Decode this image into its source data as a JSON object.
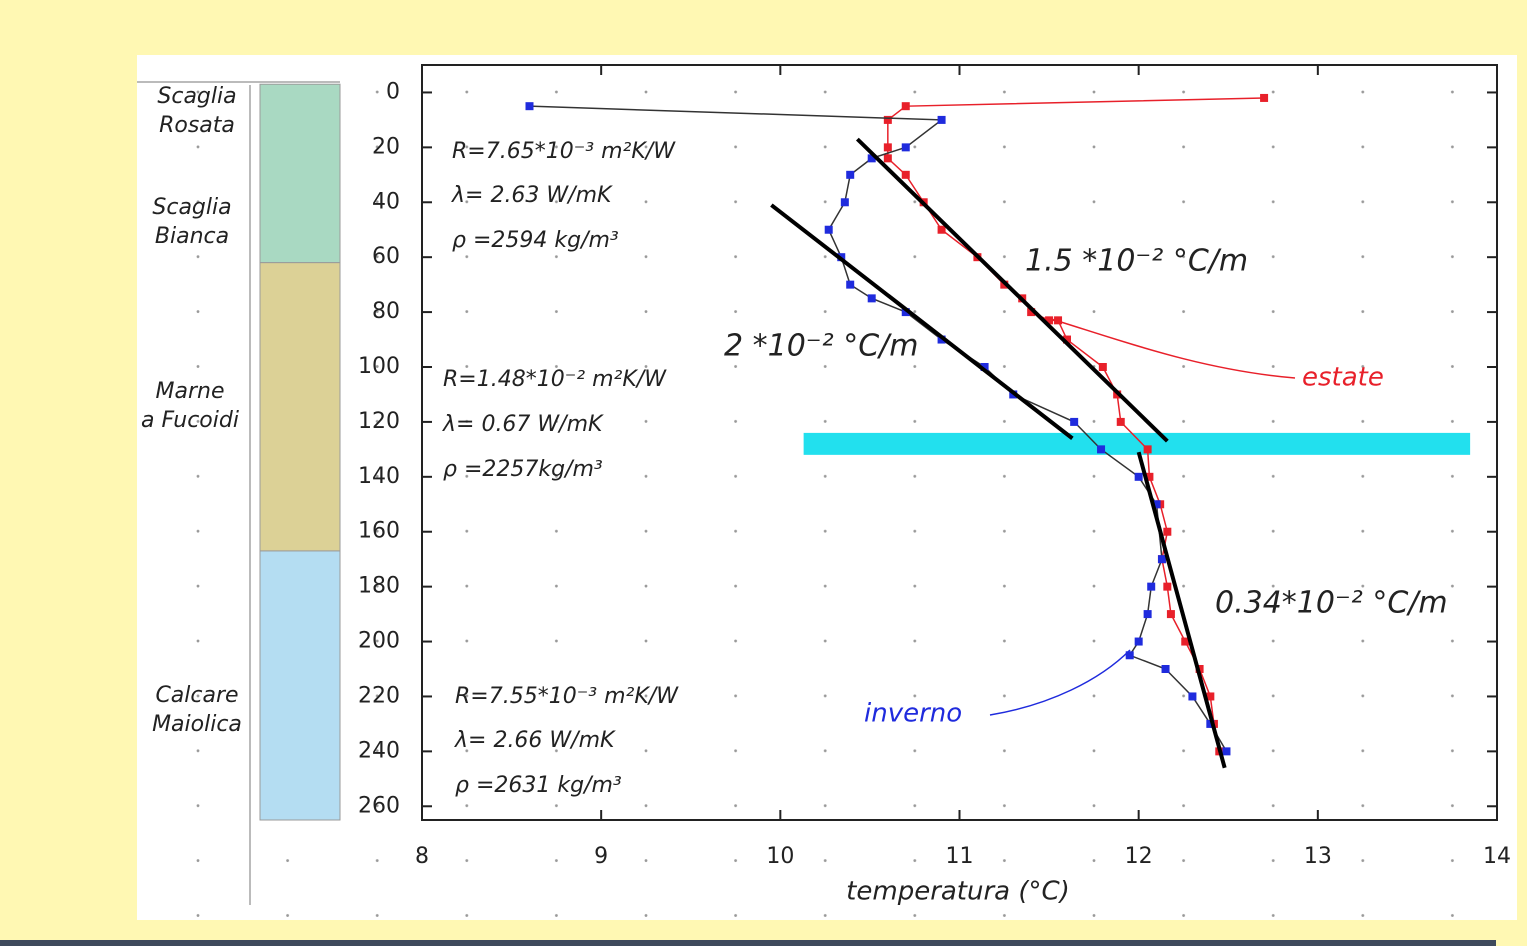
{
  "chart_data": {
    "type": "line",
    "x_label": "temperatura (°C)",
    "xlim": [
      8,
      14
    ],
    "ylim": [
      -10,
      265
    ],
    "y_inverted": true,
    "xticks": [
      8,
      9,
      10,
      11,
      12,
      13,
      14
    ],
    "yticks": [
      0,
      20,
      40,
      60,
      80,
      100,
      120,
      140,
      160,
      180,
      200,
      220,
      240,
      260
    ],
    "series": [
      {
        "name": "estate",
        "color": "#e8202a",
        "line_color": "#e8202a",
        "x": [
          12.7,
          10.7,
          10.6,
          10.6,
          10.6,
          10.7,
          10.8,
          10.9,
          11.1,
          11.25,
          11.35,
          11.4,
          11.5,
          11.55,
          11.6,
          11.8,
          11.88,
          11.9,
          12.05,
          12.06,
          12.12,
          12.16,
          12.13,
          12.16,
          12.18,
          12.26,
          12.34,
          12.4,
          12.42,
          12.45
        ],
        "values": [
          2,
          5,
          10,
          20,
          24,
          30,
          40,
          50,
          60,
          70,
          75,
          80,
          83,
          83,
          90,
          100,
          110,
          120,
          130,
          140,
          150,
          160,
          170,
          180,
          190,
          200,
          210,
          220,
          230,
          240
        ]
      },
      {
        "name": "inverno",
        "color": "#1f2bdd",
        "line_color": "#333333",
        "x": [
          8.6,
          10.9,
          10.7,
          10.51,
          10.39,
          10.36,
          10.27,
          10.34,
          10.39,
          10.51,
          10.7,
          10.9,
          11.14,
          11.3,
          11.64,
          11.79,
          12.0,
          12.1,
          12.13,
          12.07,
          12.05,
          12.0,
          11.95,
          12.15,
          12.3,
          12.4,
          12.49
        ],
        "values": [
          5,
          10,
          20,
          24,
          30,
          40,
          50,
          60,
          70,
          75,
          80,
          90,
          100,
          110,
          120,
          130,
          140,
          150,
          170,
          180,
          190,
          200,
          205,
          210,
          220,
          230,
          240
        ]
      }
    ],
    "fit_lines": [
      {
        "x": [
          10.43,
          12.16
        ],
        "values": [
          17,
          127
        ]
      },
      {
        "x": [
          9.95,
          11.63
        ],
        "values": [
          41,
          126
        ]
      },
      {
        "x": [
          12.0,
          12.48
        ],
        "values": [
          131,
          246
        ]
      }
    ],
    "band": {
      "x": [
        10.13,
        13.85
      ],
      "values": [
        124,
        132
      ],
      "color": "#22e0ee"
    },
    "column": [
      {
        "top": -3,
        "bottom": 62,
        "color": "#a9d9c2"
      },
      {
        "top": 62,
        "bottom": 167,
        "color": "#dcd196"
      },
      {
        "top": 167,
        "bottom": 265,
        "color": "#b4ddf2"
      }
    ],
    "annotations": {
      "formations": [
        [
          "Scaglia",
          "Rosata"
        ],
        [
          "Scaglia",
          "Bianca"
        ],
        [
          "Marne",
          "a Fucoidi"
        ],
        [
          "Calcare",
          "Maiolica"
        ]
      ],
      "properties": [
        [
          "R=7.65*10⁻³ m²K/W",
          "λ= 2.63 W/mK",
          "ρ =2594 kg/m³"
        ],
        [
          "R=1.48*10⁻² m²K/W",
          "λ= 0.67 W/mK",
          "ρ =2257kg/m³"
        ],
        [
          "R=7.55*10⁻³ m²K/W",
          "λ= 2.66 W/mK",
          "ρ =2631 kg/m³"
        ]
      ],
      "gradients": [
        "1.5 *10⁻² °C/m",
        "2 *10⁻² °C/m",
        "0.34*10⁻² °C/m"
      ]
    }
  }
}
